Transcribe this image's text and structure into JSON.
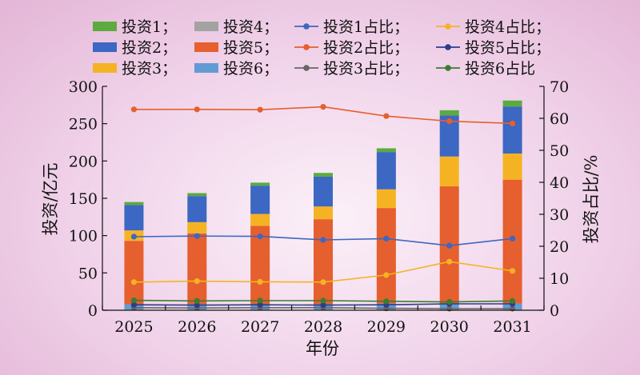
{
  "chart_data": {
    "type": "bar",
    "stacked": true,
    "categories": [
      "2025",
      "2026",
      "2027",
      "2028",
      "2029",
      "2030",
      "2031"
    ],
    "xlabel": "年份",
    "ylabel": "投资/亿元",
    "y2label": "投资占比/%",
    "ylim": [
      0,
      300
    ],
    "y2lim": [
      0,
      70
    ],
    "yticks": [
      0,
      50,
      100,
      150,
      200,
      250,
      300
    ],
    "y2ticks": [
      0,
      10,
      20,
      30,
      40,
      50,
      60,
      70
    ],
    "grid": false,
    "legend_position": "top",
    "bar_series": [
      {
        "name": "投资1；",
        "color": "#5bab3f",
        "values": [
          4,
          4,
          4,
          5,
          5,
          7,
          8
        ]
      },
      {
        "name": "投资2；",
        "color": "#3c67c2",
        "values": [
          34,
          35,
          38,
          40,
          50,
          55,
          63
        ]
      },
      {
        "name": "投资3；",
        "color": "#f5b324",
        "values": [
          14,
          15,
          16,
          17,
          25,
          40,
          35
        ]
      },
      {
        "name": "投资4；",
        "color": "#a3a3a3",
        "values": [
          1,
          1,
          1,
          1,
          1,
          1,
          1
        ]
      },
      {
        "name": "投资5；",
        "color": "#e65f2e",
        "values": [
          85,
          95,
          105,
          114,
          128,
          157,
          166
        ]
      },
      {
        "name": "投资6；",
        "color": "#629bd4",
        "values": [
          7,
          7,
          7,
          7,
          8,
          8,
          8
        ]
      }
    ],
    "line_series": [
      {
        "name": "投资1占比；",
        "color": "#3c67c2",
        "values": [
          23,
          23.2,
          23.1,
          22,
          22.4,
          20.2,
          22.4
        ]
      },
      {
        "name": "投资2占比；",
        "color": "#e65f2e",
        "values": [
          62.8,
          62.8,
          62.7,
          63.6,
          60.7,
          59.1,
          58.4
        ]
      },
      {
        "name": "投资3占比；",
        "color": "#666666",
        "values": [
          0.8,
          0.7,
          0.8,
          0.8,
          0.6,
          0.5,
          0.5
        ]
      },
      {
        "name": "投资4占比；",
        "color": "#f5b324",
        "values": [
          8.8,
          9.1,
          8.9,
          8.8,
          11,
          15.2,
          12.3
        ]
      },
      {
        "name": "投资5占比；",
        "color": "#2b3c8f",
        "values": [
          1.7,
          1.6,
          1.7,
          1.6,
          1.7,
          2,
          2
        ]
      },
      {
        "name": "投资6占比",
        "color": "#3c7d2e",
        "values": [
          3.1,
          2.9,
          3,
          3,
          2.8,
          2.6,
          2.9
        ]
      }
    ],
    "legend_items": [
      {
        "label": "投资1；",
        "kind": "bar",
        "color": "#5bab3f"
      },
      {
        "label": "投资4；",
        "kind": "bar",
        "color": "#a3a3a3"
      },
      {
        "label": "投资1占比；",
        "kind": "line",
        "color": "#3c67c2"
      },
      {
        "label": "投资4占比；",
        "kind": "line",
        "color": "#f5b324"
      },
      {
        "label": "投资2；",
        "kind": "bar",
        "color": "#3c67c2"
      },
      {
        "label": "投资5；",
        "kind": "bar",
        "color": "#e65f2e"
      },
      {
        "label": "投资2占比；",
        "kind": "line",
        "color": "#e65f2e"
      },
      {
        "label": "投资5占比；",
        "kind": "line",
        "color": "#2b3c8f"
      },
      {
        "label": "投资3；",
        "kind": "bar",
        "color": "#f5b324"
      },
      {
        "label": "投资6；",
        "kind": "bar",
        "color": "#629bd4"
      },
      {
        "label": "投资3占比；",
        "kind": "line",
        "color": "#666666"
      },
      {
        "label": "投资6占比",
        "kind": "line",
        "color": "#3c7d2e"
      }
    ]
  }
}
